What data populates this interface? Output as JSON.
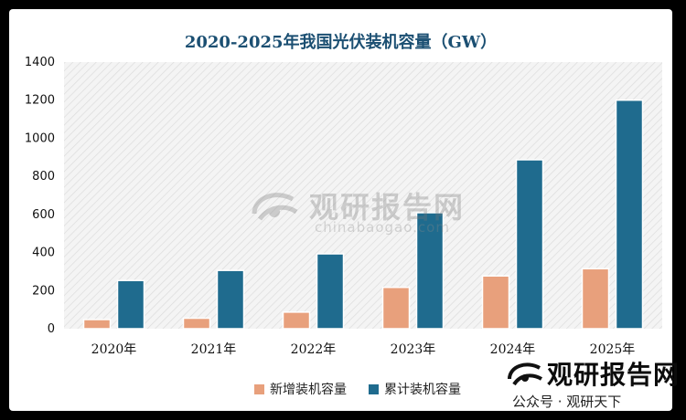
{
  "chart_data": {
    "type": "bar",
    "title": "2020-2025年我国光伏装机容量（GW）",
    "categories": [
      "2020年",
      "2021年",
      "2022年",
      "2023年",
      "2024年",
      "2025年"
    ],
    "series": [
      {
        "name": "新增装机容量",
        "color": "#e8a07c",
        "values": [
          48,
          55,
          87,
          217,
          277,
          315
        ]
      },
      {
        "name": "累计装机容量",
        "color": "#1f6b8e",
        "values": [
          253,
          306,
          393,
          609,
          887,
          1200
        ]
      }
    ],
    "ylim": [
      0,
      1400
    ],
    "yticks": [
      0,
      200,
      400,
      600,
      800,
      1000,
      1200,
      1400
    ],
    "grid": false,
    "legend_position": "bottom"
  },
  "watermark": {
    "brand": "观研报告网",
    "url": "chinabaogao.com"
  },
  "footer_watermark": {
    "brand": "观研报告网",
    "line": "公众号 · 观研天下"
  },
  "colors": {
    "title": "#1b4f72",
    "background": "#ffffff",
    "frame": "#000000"
  }
}
